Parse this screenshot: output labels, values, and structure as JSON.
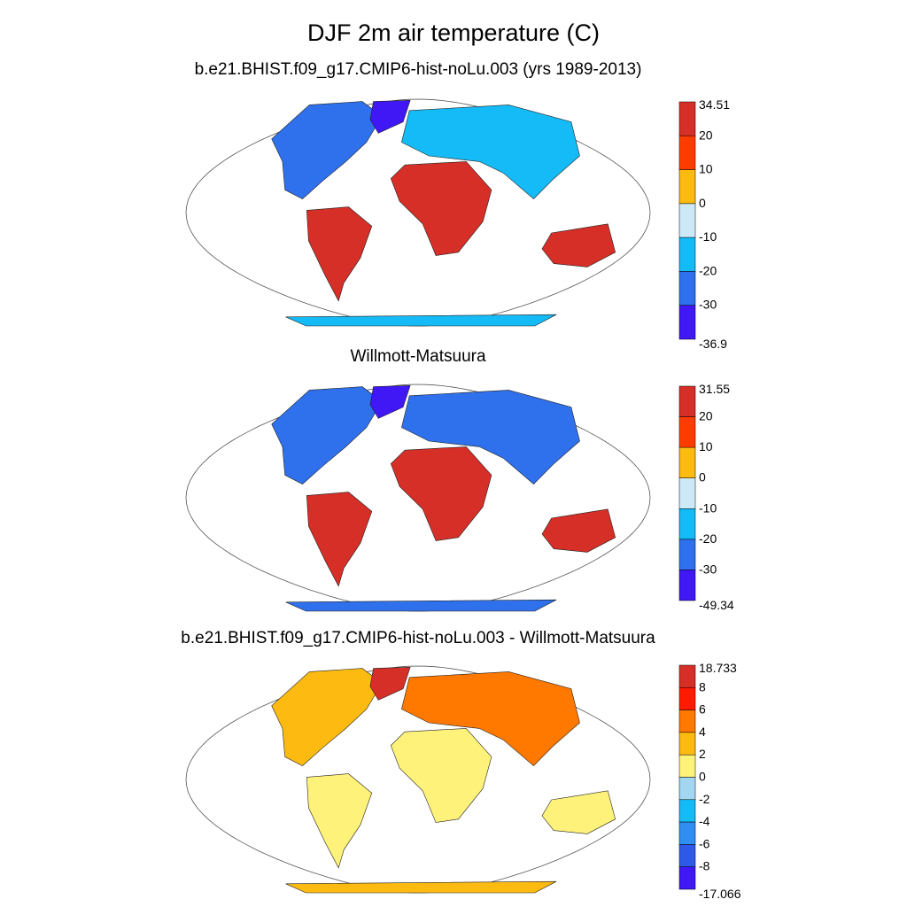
{
  "figure": {
    "title": "DJF 2m air temperature (C)"
  },
  "panels": [
    {
      "title": "b.e21.BHIST.f09_g17.CMIP6-hist-noLu.003 (yrs 1989-2013)",
      "colorbar": {
        "labels": [
          "34.51",
          "20",
          "10",
          "0",
          "-10",
          "-20",
          "-30",
          "-36.9"
        ],
        "colors": [
          "#d62f27",
          "#ff3c00",
          "#fdbb12",
          "#cde9f8",
          "#14bbf6",
          "#2f70ec",
          "#4017f5"
        ]
      },
      "regions": [
        {
          "name": "north-america",
          "color": "#2f70ec"
        },
        {
          "name": "south-america",
          "color": "#d62f27"
        },
        {
          "name": "africa",
          "color": "#d62f27"
        },
        {
          "name": "eurasia",
          "color": "#14bbf6"
        },
        {
          "name": "australia",
          "color": "#d62f27"
        },
        {
          "name": "antarctica",
          "color": "#14bbf6"
        },
        {
          "name": "greenland",
          "color": "#4017f5"
        }
      ]
    },
    {
      "title": "Willmott-Matsuura",
      "colorbar": {
        "labels": [
          "31.55",
          "20",
          "10",
          "0",
          "-10",
          "-20",
          "-30",
          "-49.34"
        ],
        "colors": [
          "#d62f27",
          "#ff3c00",
          "#fdbb12",
          "#cde9f8",
          "#14bbf6",
          "#2f70ec",
          "#4017f5"
        ]
      },
      "regions": [
        {
          "name": "north-america",
          "color": "#2f70ec"
        },
        {
          "name": "south-america",
          "color": "#d62f27"
        },
        {
          "name": "africa",
          "color": "#d62f27"
        },
        {
          "name": "eurasia",
          "color": "#2f70ec"
        },
        {
          "name": "australia",
          "color": "#d62f27"
        },
        {
          "name": "antarctica",
          "color": "#2f70ec"
        },
        {
          "name": "greenland",
          "color": "#4017f5"
        }
      ]
    },
    {
      "title": "b.e21.BHIST.f09_g17.CMIP6-hist-noLu.003 - Willmott-Matsuura",
      "colorbar": {
        "labels": [
          "18.733",
          "8",
          "6",
          "4",
          "2",
          "0",
          "-2",
          "-4",
          "-6",
          "-8",
          "-17.066"
        ],
        "colors": [
          "#d62f27",
          "#ff1a00",
          "#ff7800",
          "#fdbb12",
          "#fff27a",
          "#a3d6f0",
          "#14bbf6",
          "#2f8ef0",
          "#2f5ae8",
          "#4017f5"
        ]
      },
      "regions": [
        {
          "name": "north-america",
          "color": "#fdbb12"
        },
        {
          "name": "south-america",
          "color": "#fff27a"
        },
        {
          "name": "africa",
          "color": "#fff27a"
        },
        {
          "name": "eurasia",
          "color": "#ff7800"
        },
        {
          "name": "australia",
          "color": "#fff27a"
        },
        {
          "name": "antarctica",
          "color": "#fdbb12"
        },
        {
          "name": "greenland",
          "color": "#d62f27"
        }
      ]
    }
  ]
}
